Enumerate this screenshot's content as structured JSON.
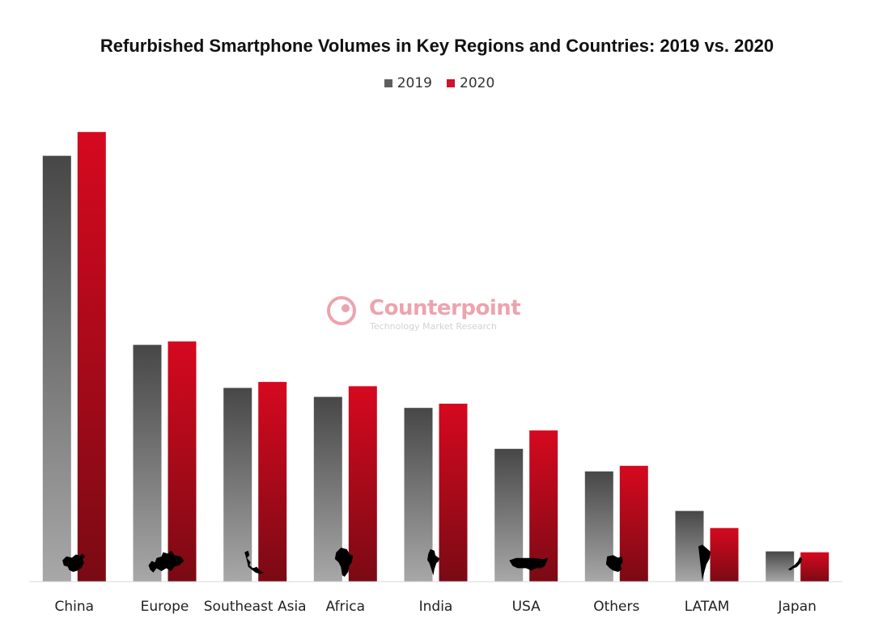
{
  "chart_data": {
    "type": "bar",
    "title": "Refurbished Smartphone Volumes in Key Regions and Countries: 2019 vs. 2020",
    "xlabel": "",
    "ylabel": "",
    "categories": [
      "China",
      "Europe",
      "Southeast Asia",
      "Africa",
      "India",
      "USA",
      "Others",
      "LATAM",
      "Japan"
    ],
    "series": [
      {
        "name": "2019",
        "color": "#5e5e5e",
        "values": [
          100,
          55.6,
          45.5,
          43.4,
          40.8,
          31.2,
          25.9,
          16.6,
          7.1
        ]
      },
      {
        "name": "2020",
        "color": "#d0112b",
        "values": [
          105.6,
          56.4,
          46.9,
          45.9,
          41.8,
          35.5,
          27.2,
          12.6,
          6.9
        ]
      }
    ],
    "ylim": [
      0,
      110
    ],
    "grid": false,
    "legend_position": "top-center"
  },
  "watermark": {
    "name": "Counterpoint",
    "tagline": "Technology Market Research"
  },
  "icons": {
    "map_silhouettes": [
      "china-map-icon",
      "europe-map-icon",
      "southeast-asia-map-icon",
      "africa-map-icon",
      "india-map-icon",
      "usa-map-icon",
      "others-map-icon",
      "latam-map-icon",
      "japan-map-icon"
    ]
  }
}
